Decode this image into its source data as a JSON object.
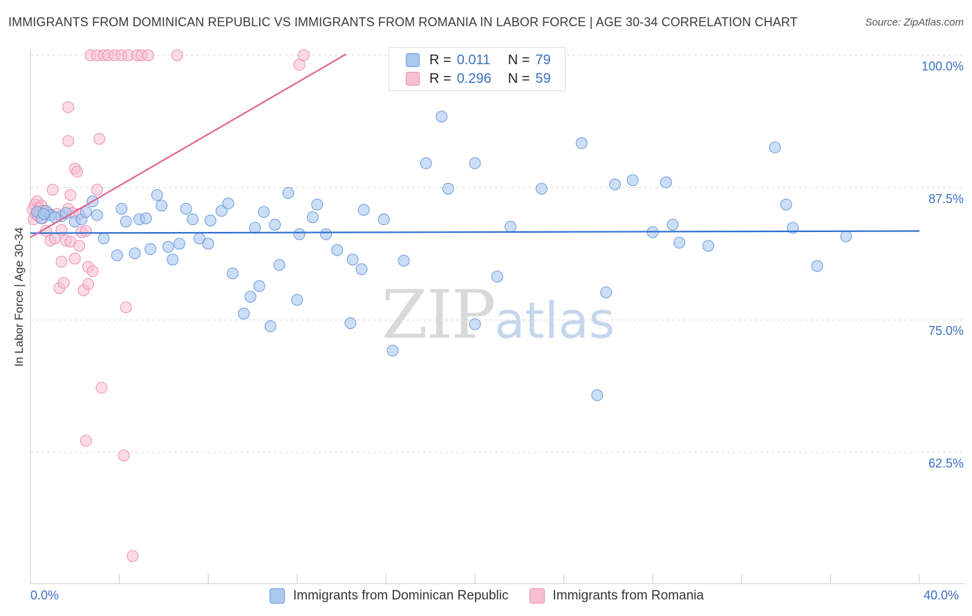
{
  "header": {
    "title": "IMMIGRANTS FROM DOMINICAN REPUBLIC VS IMMIGRANTS FROM ROMANIA IN LABOR FORCE | AGE 30-34 CORRELATION CHART",
    "source": "Source: ZipAtlas.com"
  },
  "watermark": {
    "zip": "ZIP",
    "atlas": "atlas"
  },
  "legend": {
    "series1": {
      "r_label": "R =",
      "r_value": "0.011",
      "n_label": "N =",
      "n_value": "79"
    },
    "series2": {
      "r_label": "R =",
      "r_value": "0.296",
      "n_label": "N =",
      "n_value": "59"
    }
  },
  "colors": {
    "blue_fill": "#a9c8f0",
    "blue_stroke": "#6a9ad8",
    "blue_line": "#2f6fd0",
    "pink_fill": "#f7bfd2",
    "pink_stroke": "#ea8fb0",
    "pink_line": "#e0638f",
    "accent_text": "#3a72c6",
    "grid": "#d8d8d8"
  },
  "chart_data": {
    "type": "scatter",
    "title": "IMMIGRANTS FROM DOMINICAN REPUBLIC VS IMMIGRANTS FROM ROMANIA IN LABOR FORCE | AGE 30-34 CORRELATION CHART",
    "xlabel": "",
    "ylabel": "In Labor Force | Age 30-34",
    "xlim": [
      0,
      40
    ],
    "ylim": [
      50,
      101
    ],
    "x_tick_labels": [
      "0.0%",
      "40.0%"
    ],
    "y_ticks": [
      62.5,
      75.0,
      87.5,
      100.0
    ],
    "y_tick_labels": [
      "62.5%",
      "75.0%",
      "87.5%",
      "100.0%"
    ],
    "grid": true,
    "legend_position": "bottom",
    "series": [
      {
        "name": "Immigrants from Dominican Republic",
        "trend": {
          "x": [
            0,
            40
          ],
          "y": [
            83.2,
            83.4
          ]
        },
        "points": [
          [
            0.3,
            85.2
          ],
          [
            0.5,
            84.6
          ],
          [
            0.7,
            85.3
          ],
          [
            0.9,
            84.9
          ],
          [
            1.4,
            84.8
          ],
          [
            1.6,
            85.1
          ],
          [
            2.0,
            84.3
          ],
          [
            2.3,
            84.5
          ],
          [
            2.5,
            85.2
          ],
          [
            2.8,
            86.2
          ],
          [
            3.0,
            84.9
          ],
          [
            3.3,
            82.7
          ],
          [
            3.9,
            81.1
          ],
          [
            4.1,
            85.5
          ],
          [
            4.3,
            84.3
          ],
          [
            4.7,
            81.3
          ],
          [
            4.9,
            84.5
          ],
          [
            5.2,
            84.6
          ],
          [
            5.4,
            81.7
          ],
          [
            5.7,
            86.8
          ],
          [
            5.9,
            85.8
          ],
          [
            6.2,
            81.9
          ],
          [
            6.4,
            80.7
          ],
          [
            6.7,
            82.2
          ],
          [
            7.0,
            85.5
          ],
          [
            7.3,
            84.5
          ],
          [
            7.6,
            82.7
          ],
          [
            8.0,
            82.2
          ],
          [
            8.1,
            84.4
          ],
          [
            8.6,
            85.3
          ],
          [
            8.9,
            86.0
          ],
          [
            9.1,
            79.4
          ],
          [
            9.6,
            75.6
          ],
          [
            9.9,
            77.2
          ],
          [
            10.1,
            83.7
          ],
          [
            10.3,
            78.2
          ],
          [
            10.5,
            85.2
          ],
          [
            10.8,
            74.4
          ],
          [
            11.0,
            84.0
          ],
          [
            11.2,
            80.2
          ],
          [
            11.6,
            87.0
          ],
          [
            12.0,
            76.9
          ],
          [
            12.1,
            83.1
          ],
          [
            12.7,
            84.7
          ],
          [
            12.9,
            85.9
          ],
          [
            13.3,
            83.1
          ],
          [
            13.8,
            81.6
          ],
          [
            14.4,
            74.7
          ],
          [
            14.5,
            80.7
          ],
          [
            14.9,
            79.8
          ],
          [
            15.0,
            85.4
          ],
          [
            15.9,
            84.5
          ],
          [
            16.3,
            72.1
          ],
          [
            16.8,
            80.6
          ],
          [
            17.8,
            89.8
          ],
          [
            18.5,
            94.2
          ],
          [
            18.8,
            87.4
          ],
          [
            20.0,
            89.8
          ],
          [
            20.0,
            74.6
          ],
          [
            21.0,
            79.1
          ],
          [
            21.6,
            83.8
          ],
          [
            23.0,
            87.4
          ],
          [
            24.8,
            91.7
          ],
          [
            25.5,
            67.9
          ],
          [
            25.9,
            77.6
          ],
          [
            26.3,
            87.8
          ],
          [
            27.1,
            88.2
          ],
          [
            28.0,
            83.3
          ],
          [
            28.6,
            88.0
          ],
          [
            28.9,
            84.0
          ],
          [
            29.2,
            82.3
          ],
          [
            30.5,
            82.0
          ],
          [
            33.5,
            91.3
          ],
          [
            34.0,
            85.9
          ],
          [
            34.3,
            83.7
          ],
          [
            35.4,
            80.1
          ],
          [
            36.7,
            82.9
          ],
          [
            0.6,
            85.0
          ],
          [
            1.1,
            84.7
          ]
        ]
      },
      {
        "name": "Immigrants from Romania",
        "trend": {
          "x": [
            0,
            14.2
          ],
          "y": [
            82.8,
            100.1
          ]
        },
        "points": [
          [
            0.1,
            85.4
          ],
          [
            0.15,
            84.5
          ],
          [
            0.2,
            85.9
          ],
          [
            0.25,
            85.0
          ],
          [
            0.3,
            86.2
          ],
          [
            0.35,
            84.8
          ],
          [
            0.4,
            85.6
          ],
          [
            0.45,
            85.1
          ],
          [
            0.5,
            85.8
          ],
          [
            0.55,
            84.6
          ],
          [
            0.6,
            85.3
          ],
          [
            0.7,
            83.4
          ],
          [
            0.8,
            85.1
          ],
          [
            0.9,
            82.5
          ],
          [
            1.0,
            87.3
          ],
          [
            1.1,
            82.7
          ],
          [
            1.2,
            85.0
          ],
          [
            1.3,
            78.0
          ],
          [
            1.4,
            83.5
          ],
          [
            1.4,
            80.5
          ],
          [
            1.5,
            78.5
          ],
          [
            1.6,
            82.5
          ],
          [
            1.7,
            85.5
          ],
          [
            1.7,
            95.1
          ],
          [
            1.7,
            91.9
          ],
          [
            1.8,
            86.8
          ],
          [
            1.8,
            82.4
          ],
          [
            1.9,
            85.1
          ],
          [
            2.0,
            89.3
          ],
          [
            2.0,
            80.8
          ],
          [
            2.1,
            89.0
          ],
          [
            2.2,
            85.0
          ],
          [
            2.2,
            82.0
          ],
          [
            2.3,
            83.3
          ],
          [
            2.4,
            77.8
          ],
          [
            2.5,
            83.4
          ],
          [
            2.5,
            63.6
          ],
          [
            2.6,
            80.0
          ],
          [
            2.6,
            78.4
          ],
          [
            2.7,
            100.0
          ],
          [
            2.8,
            79.6
          ],
          [
            3.0,
            100.0
          ],
          [
            3.0,
            87.3
          ],
          [
            3.1,
            92.1
          ],
          [
            3.2,
            68.6
          ],
          [
            3.3,
            100.0
          ],
          [
            3.5,
            100.0
          ],
          [
            3.8,
            100.0
          ],
          [
            4.1,
            100.0
          ],
          [
            4.2,
            62.2
          ],
          [
            4.3,
            76.2
          ],
          [
            4.4,
            100.0
          ],
          [
            4.6,
            52.7
          ],
          [
            4.8,
            100.0
          ],
          [
            5.0,
            100.0
          ],
          [
            5.3,
            100.0
          ],
          [
            6.6,
            100.0
          ],
          [
            12.1,
            99.1
          ],
          [
            12.3,
            100.0
          ]
        ]
      }
    ]
  },
  "bottom_legend": {
    "item1": "Immigrants from Dominican Republic",
    "item2": "Immigrants from Romania"
  }
}
